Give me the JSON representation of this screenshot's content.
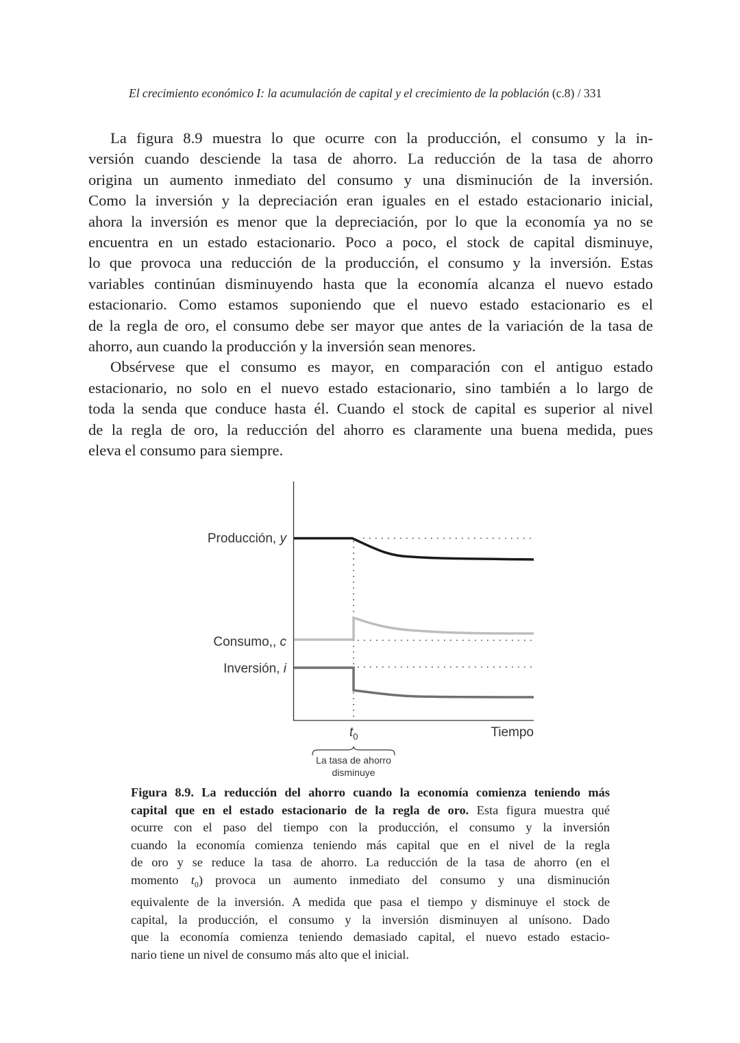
{
  "header": {
    "running_title": "El crecimiento económico I: la acumulación de capital y el crecimiento de la población",
    "chapter": "(c.8)",
    "separator": "/",
    "page_number": "331"
  },
  "body": {
    "paragraphs": [
      [
        "La figura 8.9 muestra lo que ocurre con la producción, el consumo y la in-",
        "versión cuando desciende la tasa de ahorro. La reducción de la tasa de ahorro",
        "origina un aumento inmediato del consumo y una disminución de la inversión.",
        "Como la inversión y la depreciación eran iguales en el estado estacionario inicial,",
        "ahora la inversión es menor que la depreciación, por lo que la economía ya no se",
        "encuentra en un estado estacionario. Poco a poco, el stock de capital disminuye,",
        "lo que provoca una reducción de la producción, el consumo y la inversión. Estas",
        "variables continúan disminuyendo hasta que la economía alcanza el nuevo estado",
        "estacionario. Como estamos suponiendo que el nuevo estado estacionario es el",
        "de la regla de oro, el consumo debe ser mayor que antes de la variación de la tasa de",
        "ahorro, aun cuando la producción y la inversión sean menores."
      ],
      [
        "Obsérvese que el consumo es mayor, en comparación con el antiguo estado",
        "estacionario, no solo en el nuevo estado estacionario, sino también a lo largo de",
        "toda la senda que conduce hasta él. Cuando el stock de capital es superior al nivel",
        "de la regla de oro, la reducción del ahorro es claramente una buena medida, pues",
        "eleva el consumo para siempre."
      ]
    ]
  },
  "figure": {
    "production_label": "Producción, ",
    "production_var": "y",
    "consumption_label": "Consumo,, ",
    "consumption_var": "c",
    "investment_label": "Inversión, ",
    "investment_var": "i",
    "x_axis_label": "Tiempo",
    "t0_main": "t",
    "t0_sub": "0",
    "brace_label_1": "La tasa de ahorro",
    "brace_label_2": "disminuye",
    "colors": {
      "production": "#1a1a1a",
      "consumption": "#bdbdbd",
      "investment": "#707070"
    }
  },
  "caption": {
    "bold_1": "Figura 8.9. La reducción del ahorro cuando la economía comienza teniendo más",
    "bold_2": "capital que en el estado estacionario de la regla de oro.",
    "l2_rest": " Esta figura muestra qué",
    "l3": "ocurre con el paso del tiempo con la producción, el consumo y la inversión",
    "l4": "cuando la economía comienza teniendo más capital que en el nivel de la regla",
    "l5": "de oro y se reduce la tasa de ahorro. La reducción de la tasa de ahorro (en el",
    "l6_a": "momento ",
    "l6_t": "t",
    "l6_sub": "0",
    "l6_b": ") provoca un aumento inmediato del consumo y una disminución",
    "l7": "equivalente de la inversión. A medida que pasa el tiempo y disminuye el stock de",
    "l8": "capital, la producción, el consumo y la inversión disminuyen al unísono. Dado",
    "l9": "que la economía comienza teniendo demasiado capital, el nuevo estado estacio-",
    "l10": "nario tiene un nivel de consumo más alto que el inicial."
  }
}
